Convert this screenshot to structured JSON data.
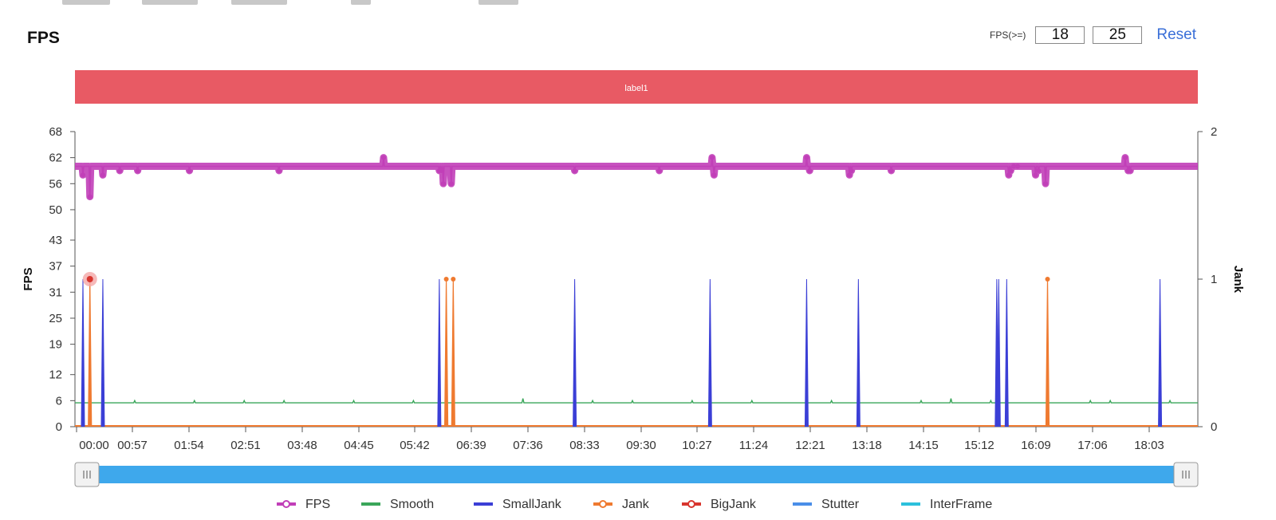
{
  "header": {
    "title": "FPS",
    "threshold_label": "FPS(>=)",
    "threshold_low": "18",
    "threshold_high": "25",
    "reset_label": "Reset"
  },
  "colors": {
    "label_band": "#e85a64",
    "fps": "#c13fb8",
    "smooth": "#3aa65a",
    "smalljank": "#3b3fd6",
    "jank": "#ef7a30",
    "bigjank": "#d8352e",
    "stutter": "#4a8ee8",
    "interframe": "#2cc0dc",
    "slider": "#3ea8ec"
  },
  "chart_data": {
    "type": "line",
    "label_band": "label1",
    "left_axis": {
      "label": "FPS",
      "ticks": [
        "0",
        "6",
        "12",
        "19",
        "25",
        "31",
        "37",
        "43",
        "50",
        "56",
        "62",
        "68"
      ],
      "range": [
        0,
        68
      ]
    },
    "right_axis": {
      "label": "Jank",
      "ticks": [
        "0",
        "1",
        "2"
      ],
      "range": [
        0,
        2
      ]
    },
    "x_ticks": [
      "00:00",
      "00:57",
      "01:54",
      "02:51",
      "03:48",
      "04:45",
      "05:42",
      "06:39",
      "07:36",
      "08:33",
      "09:30",
      "10:27",
      "11:24",
      "12:21",
      "13:18",
      "14:15",
      "15:12",
      "16:09",
      "17:06",
      "18:03"
    ],
    "x_range_seconds": [
      0,
      1128
    ],
    "legend": [
      "FPS",
      "Smooth",
      "SmallJank",
      "Jank",
      "BigJank",
      "Stutter",
      "InterFrame"
    ],
    "series": [
      {
        "name": "FPS",
        "axis": "left",
        "baseline": 60,
        "dips": [
          [
            8,
            58
          ],
          [
            15,
            53
          ],
          [
            28,
            58
          ],
          [
            45,
            59
          ],
          [
            63,
            59
          ],
          [
            115,
            59
          ],
          [
            205,
            59
          ],
          [
            310,
            62
          ],
          [
            366,
            59
          ],
          [
            368,
            59
          ],
          [
            370,
            56
          ],
          [
            378,
            56
          ],
          [
            502,
            59
          ],
          [
            587,
            59
          ],
          [
            640,
            62
          ],
          [
            642,
            58
          ],
          [
            735,
            62
          ],
          [
            738,
            59
          ],
          [
            778,
            58
          ],
          [
            780,
            59
          ],
          [
            820,
            59
          ],
          [
            938,
            58
          ],
          [
            940,
            59
          ],
          [
            943,
            60
          ],
          [
            947,
            60
          ],
          [
            965,
            58
          ],
          [
            968,
            59
          ],
          [
            975,
            56
          ],
          [
            1055,
            62
          ],
          [
            1058,
            59
          ],
          [
            1060,
            59
          ]
        ]
      },
      {
        "name": "Smooth",
        "axis": "left",
        "baseline": 5.5,
        "bumps": [
          [
            60,
            6
          ],
          [
            120,
            6
          ],
          [
            170,
            6
          ],
          [
            210,
            6
          ],
          [
            280,
            6
          ],
          [
            340,
            6
          ],
          [
            366,
            6.5
          ],
          [
            450,
            6.5
          ],
          [
            520,
            6
          ],
          [
            560,
            6
          ],
          [
            620,
            6
          ],
          [
            680,
            6
          ],
          [
            760,
            6
          ],
          [
            850,
            6
          ],
          [
            880,
            6.5
          ],
          [
            920,
            6
          ],
          [
            1020,
            6
          ],
          [
            1040,
            6
          ],
          [
            1100,
            6
          ]
        ]
      },
      {
        "name": "SmallJank",
        "axis": "right",
        "spikes": [
          8,
          28,
          366,
          502,
          638,
          735,
          787,
          926,
          928,
          936,
          1090
        ]
      },
      {
        "name": "Jank",
        "axis": "right",
        "spikes": [
          15,
          373,
          380,
          977
        ]
      },
      {
        "name": "BigJank",
        "axis": "right",
        "spikes": [
          15
        ]
      }
    ]
  }
}
